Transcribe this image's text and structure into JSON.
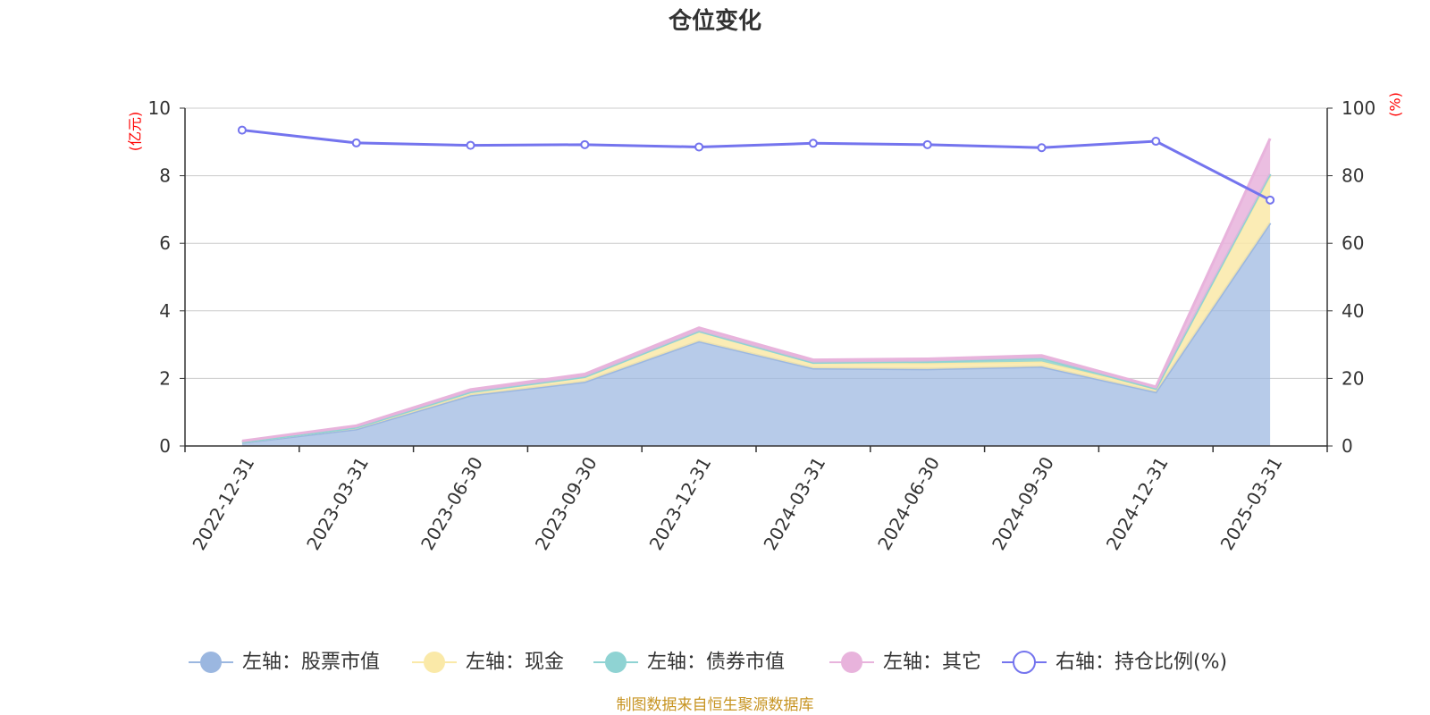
{
  "title": "仓位变化",
  "left_axis_unit": "(亿元)",
  "right_axis_unit": "(%)",
  "source": "制图数据来自恒生聚源数据库",
  "colors": {
    "stock": "#9bb7e0",
    "cash": "#fae9a8",
    "bond": "#8fd3d3",
    "other": "#e8b3dc",
    "ratio": "#7474ee"
  },
  "chart_data": {
    "type": "area",
    "categories": [
      "2022-12-31",
      "2023-03-31",
      "2023-06-30",
      "2023-09-30",
      "2023-12-31",
      "2024-03-31",
      "2024-06-30",
      "2024-09-30",
      "2024-12-31",
      "2025-03-31"
    ],
    "y_left_ticks": [
      "0",
      "2",
      "4",
      "6",
      "8",
      "10"
    ],
    "y_right_ticks": [
      "0",
      "20",
      "40",
      "60",
      "80",
      "100"
    ],
    "ylim_left": [
      0,
      10
    ],
    "ylim_right": [
      0,
      100
    ],
    "grid": true,
    "legend_position": "bottom",
    "series": [
      {
        "name": "左轴：股票市值",
        "key": "stock",
        "axis": "left",
        "stacked": true,
        "values": [
          0.1,
          0.5,
          1.5,
          1.9,
          3.1,
          2.3,
          2.28,
          2.35,
          1.6,
          6.6
        ]
      },
      {
        "name": "左轴：现金",
        "key": "cash",
        "axis": "left",
        "stacked": true,
        "values": [
          0.02,
          0.05,
          0.1,
          0.15,
          0.3,
          0.17,
          0.17,
          0.15,
          0.1,
          1.4
        ]
      },
      {
        "name": "左轴：债券市值",
        "key": "bond",
        "axis": "left",
        "stacked": true,
        "values": [
          0.0,
          0.0,
          0.0,
          0.0,
          0.0,
          0.0,
          0.05,
          0.1,
          0.0,
          0.05
        ]
      },
      {
        "name": "左轴：其它",
        "key": "other",
        "axis": "left",
        "stacked": true,
        "values": [
          0.03,
          0.05,
          0.07,
          0.08,
          0.1,
          0.08,
          0.08,
          0.08,
          0.05,
          1.05
        ]
      },
      {
        "name": "右轴：持仓比例(%)",
        "key": "ratio",
        "axis": "right",
        "stacked": false,
        "values": [
          93.5,
          89.7,
          89.0,
          89.2,
          88.5,
          89.6,
          89.2,
          88.3,
          90.2,
          72.8
        ]
      }
    ]
  }
}
